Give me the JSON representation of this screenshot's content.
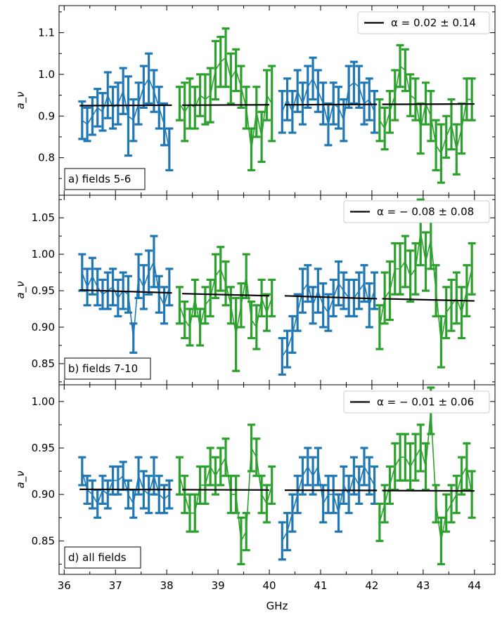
{
  "figure": {
    "xlabel": "GHz",
    "xticks": [
      36,
      37,
      38,
      39,
      40,
      41,
      42,
      43,
      44
    ]
  },
  "chart_data": [
    {
      "type": "line",
      "panel_label": "a) fields 5-6",
      "ylabel": "a_ν",
      "yticks": [
        0.8,
        0.9,
        1.0,
        1.1
      ],
      "xlim": [
        35.9,
        44.4
      ],
      "ylim": [
        0.71,
        1.165
      ],
      "legend": "α = 0.02 ± 0.14",
      "legend_position": "top-right",
      "series": [
        {
          "name": "blue",
          "color": "#1f77b4",
          "x": [
            36.35,
            36.45,
            36.55,
            36.65,
            36.75,
            36.85,
            36.95,
            37.05,
            37.15,
            37.25,
            37.35,
            37.45,
            37.55,
            37.65,
            37.75,
            37.85,
            37.95,
            38.05
          ],
          "y": [
            0.89,
            0.88,
            0.9,
            0.92,
            0.91,
            0.95,
            0.92,
            0.93,
            0.96,
            0.9,
            0.89,
            0.93,
            0.97,
            0.99,
            0.96,
            0.92,
            0.88,
            0.82
          ],
          "err": [
            0.045,
            0.04,
            0.045,
            0.045,
            0.045,
            0.055,
            0.05,
            0.05,
            0.055,
            0.095,
            0.05,
            0.05,
            0.05,
            0.06,
            0.05,
            0.05,
            0.05,
            0.05
          ]
        },
        {
          "name": "green",
          "color": "#2ca02c",
          "x": [
            38.25,
            38.35,
            38.45,
            38.55,
            38.65,
            38.75,
            38.85,
            38.95,
            39.05,
            39.15,
            39.25,
            39.35,
            39.45,
            39.55,
            39.65,
            39.75,
            39.85,
            39.95,
            40.05
          ],
          "y": [
            0.93,
            0.91,
            0.93,
            0.92,
            0.95,
            0.94,
            0.95,
            1.01,
            1.03,
            1.04,
            0.99,
            1.01,
            0.97,
            0.92,
            0.82,
            0.91,
            0.85,
            0.95,
            0.93
          ],
          "err": [
            0.04,
            0.07,
            0.06,
            0.05,
            0.05,
            0.06,
            0.065,
            0.07,
            0.06,
            0.07,
            0.06,
            0.05,
            0.05,
            0.05,
            0.05,
            0.06,
            0.06,
            0.06,
            0.09
          ]
        },
        {
          "name": "blue",
          "color": "#1f77b4",
          "x": [
            40.25,
            40.35,
            40.45,
            40.55,
            40.65,
            40.75,
            40.85,
            40.95,
            41.05,
            41.15,
            41.25,
            41.35,
            41.45,
            41.55,
            41.65,
            41.75,
            41.85,
            41.95,
            42.05
          ],
          "y": [
            0.91,
            0.94,
            0.91,
            0.96,
            0.93,
            0.97,
            0.99,
            0.96,
            0.93,
            0.88,
            0.93,
            0.92,
            0.89,
            0.97,
            0.98,
            0.97,
            0.93,
            0.94,
            0.91
          ],
          "err": [
            0.05,
            0.05,
            0.05,
            0.05,
            0.05,
            0.05,
            0.05,
            0.05,
            0.05,
            0.05,
            0.05,
            0.05,
            0.05,
            0.05,
            0.05,
            0.05,
            0.05,
            0.05,
            0.05
          ]
        },
        {
          "name": "green",
          "color": "#2ca02c",
          "x": [
            42.15,
            42.25,
            42.35,
            42.45,
            42.55,
            42.65,
            42.75,
            42.85,
            42.95,
            43.05,
            43.15,
            43.25,
            43.35,
            43.45,
            43.55,
            43.65,
            43.75,
            43.85,
            43.95
          ],
          "y": [
            0.89,
            0.87,
            0.91,
            0.95,
            1.02,
            1.01,
            0.95,
            0.94,
            0.87,
            0.93,
            0.9,
            0.83,
            0.81,
            0.85,
            0.88,
            0.82,
            0.87,
            0.94,
            0.94
          ],
          "err": [
            0.05,
            0.05,
            0.05,
            0.06,
            0.05,
            0.05,
            0.05,
            0.05,
            0.06,
            0.05,
            0.06,
            0.06,
            0.07,
            0.05,
            0.06,
            0.06,
            0.06,
            0.05,
            0.05
          ]
        }
      ],
      "fits": [
        {
          "x": [
            36.3,
            38.1
          ],
          "y": [
            0.925,
            0.926
          ]
        },
        {
          "x": [
            38.3,
            40.0
          ],
          "y": [
            0.926,
            0.927
          ]
        },
        {
          "x": [
            40.3,
            42.1
          ],
          "y": [
            0.927,
            0.928
          ]
        },
        {
          "x": [
            42.2,
            44.0
          ],
          "y": [
            0.928,
            0.929
          ]
        }
      ]
    },
    {
      "type": "line",
      "panel_label": "b) fields 7-10",
      "ylabel": "a_ν",
      "yticks": [
        0.85,
        0.9,
        0.95,
        1.0,
        1.05
      ],
      "xlim": [
        35.9,
        44.4
      ],
      "ylim": [
        0.821,
        1.081
      ],
      "legend": "α = − 0.08 ± 0.08",
      "legend_position": "top-right",
      "series": [
        {
          "name": "blue",
          "color": "#1f77b4",
          "x": [
            36.35,
            36.45,
            36.55,
            36.65,
            36.75,
            36.85,
            36.95,
            37.05,
            37.15,
            37.25,
            37.35,
            37.45,
            37.55,
            37.65,
            37.75,
            37.85,
            37.95,
            38.05
          ],
          "y": [
            0.975,
            0.955,
            0.97,
            0.955,
            0.945,
            0.95,
            0.955,
            0.94,
            0.95,
            0.945,
            0.885,
            0.97,
            0.955,
            0.975,
            0.99,
            0.945,
            0.93,
            0.955
          ],
          "err": [
            0.025,
            0.025,
            0.025,
            0.025,
            0.02,
            0.025,
            0.025,
            0.025,
            0.025,
            0.025,
            0.02,
            0.03,
            0.03,
            0.03,
            0.035,
            0.025,
            0.025,
            0.025
          ]
        },
        {
          "name": "green",
          "color": "#2ca02c",
          "x": [
            38.25,
            38.35,
            38.45,
            38.55,
            38.65,
            38.75,
            38.85,
            38.95,
            39.05,
            39.15,
            39.25,
            39.35,
            39.45,
            39.55,
            39.65,
            39.75,
            39.85,
            39.95,
            40.05
          ],
          "y": [
            0.93,
            0.91,
            0.9,
            0.94,
            0.9,
            0.93,
            0.94,
            0.97,
            0.98,
            0.96,
            0.93,
            0.89,
            0.93,
            0.97,
            0.91,
            0.9,
            0.94,
            0.92,
            0.94
          ],
          "err": [
            0.025,
            0.025,
            0.025,
            0.025,
            0.025,
            0.025,
            0.025,
            0.03,
            0.03,
            0.03,
            0.025,
            0.05,
            0.03,
            0.03,
            0.025,
            0.03,
            0.025,
            0.025,
            0.025
          ]
        },
        {
          "name": "blue",
          "color": "#1f77b4",
          "x": [
            40.25,
            40.35,
            40.45,
            40.55,
            40.65,
            40.75,
            40.85,
            40.95,
            41.05,
            41.15,
            41.25,
            41.35,
            41.45,
            41.55,
            41.65,
            41.75,
            41.85,
            41.95,
            42.05
          ],
          "y": [
            0.86,
            0.87,
            0.89,
            0.92,
            0.95,
            0.96,
            0.93,
            0.95,
            0.93,
            0.92,
            0.94,
            0.96,
            0.95,
            0.94,
            0.94,
            0.95,
            0.96,
            0.93,
            0.95
          ],
          "err": [
            0.025,
            0.025,
            0.025,
            0.025,
            0.03,
            0.025,
            0.025,
            0.03,
            0.03,
            0.025,
            0.025,
            0.03,
            0.025,
            0.025,
            0.025,
            0.025,
            0.025,
            0.03,
            0.025
          ]
        },
        {
          "name": "green",
          "color": "#2ca02c",
          "x": [
            42.15,
            42.25,
            42.35,
            42.45,
            42.55,
            42.65,
            42.75,
            42.85,
            42.95,
            43.05,
            43.15,
            43.25,
            43.35,
            43.45,
            43.55,
            43.65,
            43.75,
            43.85,
            43.95
          ],
          "y": [
            0.9,
            0.94,
            0.95,
            0.98,
            0.98,
            0.99,
            0.97,
            0.98,
            1.03,
            0.99,
            1.02,
            0.95,
            0.88,
            0.92,
            0.93,
            0.94,
            0.92,
            0.95,
            0.98
          ],
          "err": [
            0.03,
            0.035,
            0.04,
            0.035,
            0.035,
            0.035,
            0.035,
            0.035,
            0.045,
            0.04,
            0.04,
            0.035,
            0.035,
            0.035,
            0.035,
            0.035,
            0.035,
            0.035,
            0.035
          ]
        }
      ],
      "fits": [
        {
          "x": [
            36.3,
            38.1
          ],
          "y": [
            0.951,
            0.947
          ]
        },
        {
          "x": [
            38.3,
            40.0
          ],
          "y": [
            0.946,
            0.943
          ]
        },
        {
          "x": [
            40.3,
            42.1
          ],
          "y": [
            0.943,
            0.939
          ]
        },
        {
          "x": [
            42.2,
            44.0
          ],
          "y": [
            0.939,
            0.936
          ]
        }
      ]
    },
    {
      "type": "line",
      "panel_label": "d) all fields",
      "ylabel": "a_ν",
      "yticks": [
        0.85,
        0.9,
        0.95,
        1.0
      ],
      "xlim": [
        35.9,
        44.4
      ],
      "ylim": [
        0.814,
        1.018
      ],
      "legend": "α = − 0.01 ± 0.06",
      "legend_position": "top-right",
      "series": [
        {
          "name": "blue",
          "color": "#1f77b4",
          "x": [
            36.35,
            36.45,
            36.55,
            36.65,
            36.75,
            36.85,
            36.95,
            37.05,
            37.15,
            37.25,
            37.35,
            37.45,
            37.55,
            37.65,
            37.75,
            37.85,
            37.95,
            38.05
          ],
          "y": [
            0.925,
            0.905,
            0.9,
            0.89,
            0.905,
            0.9,
            0.915,
            0.915,
            0.92,
            0.9,
            0.89,
            0.92,
            0.905,
            0.9,
            0.92,
            0.9,
            0.895,
            0.9
          ],
          "err": [
            0.015,
            0.015,
            0.015,
            0.015,
            0.015,
            0.015,
            0.015,
            0.015,
            0.015,
            0.015,
            0.015,
            0.02,
            0.02,
            0.02,
            0.02,
            0.02,
            0.015,
            0.015
          ]
        },
        {
          "name": "green",
          "color": "#2ca02c",
          "x": [
            38.25,
            38.35,
            38.45,
            38.55,
            38.65,
            38.75,
            38.85,
            38.95,
            39.05,
            39.15,
            39.25,
            39.35,
            39.45,
            39.55,
            39.65,
            39.75,
            39.85,
            39.95,
            40.05
          ],
          "y": [
            0.92,
            0.9,
            0.88,
            0.88,
            0.91,
            0.91,
            0.93,
            0.92,
            0.93,
            0.94,
            0.9,
            0.9,
            0.85,
            0.86,
            0.95,
            0.94,
            0.9,
            0.89,
            0.91
          ],
          "err": [
            0.02,
            0.02,
            0.02,
            0.02,
            0.02,
            0.02,
            0.02,
            0.02,
            0.02,
            0.02,
            0.02,
            0.02,
            0.025,
            0.02,
            0.025,
            0.02,
            0.02,
            0.02,
            0.02
          ]
        },
        {
          "name": "blue",
          "color": "#1f77b4",
          "x": [
            40.25,
            40.35,
            40.45,
            40.55,
            40.65,
            40.75,
            40.85,
            40.95,
            41.05,
            41.15,
            41.25,
            41.35,
            41.45,
            41.55,
            41.65,
            41.75,
            41.85,
            41.95,
            42.05
          ],
          "y": [
            0.85,
            0.86,
            0.88,
            0.9,
            0.92,
            0.93,
            0.92,
            0.93,
            0.89,
            0.9,
            0.9,
            0.88,
            0.91,
            0.9,
            0.92,
            0.91,
            0.93,
            0.92,
            0.91
          ],
          "err": [
            0.02,
            0.02,
            0.02,
            0.02,
            0.02,
            0.02,
            0.02,
            0.02,
            0.02,
            0.02,
            0.02,
            0.02,
            0.02,
            0.02,
            0.02,
            0.02,
            0.02,
            0.02,
            0.02
          ]
        },
        {
          "name": "green",
          "color": "#2ca02c",
          "x": [
            42.15,
            42.25,
            42.35,
            42.45,
            42.55,
            42.65,
            42.75,
            42.85,
            42.95,
            43.05,
            43.15,
            43.25,
            43.35,
            43.45,
            43.55,
            43.65,
            43.75,
            43.85,
            43.95
          ],
          "y": [
            0.87,
            0.89,
            0.91,
            0.93,
            0.94,
            0.94,
            0.93,
            0.94,
            0.95,
            0.93,
            0.99,
            0.89,
            0.85,
            0.88,
            0.89,
            0.9,
            0.92,
            0.93,
            0.9
          ],
          "err": [
            0.02,
            0.02,
            0.02,
            0.025,
            0.025,
            0.025,
            0.025,
            0.025,
            0.025,
            0.025,
            0.025,
            0.02,
            0.025,
            0.02,
            0.02,
            0.02,
            0.02,
            0.025,
            0.025
          ]
        }
      ],
      "fits": [
        {
          "x": [
            36.3,
            38.1
          ],
          "y": [
            0.9055,
            0.9052
          ]
        },
        {
          "x": [
            38.3,
            40.0
          ],
          "y": [
            0.9051,
            0.9048
          ]
        },
        {
          "x": [
            40.3,
            42.1
          ],
          "y": [
            0.9046,
            0.9043
          ]
        },
        {
          "x": [
            42.2,
            44.0
          ],
          "y": [
            0.9042,
            0.9038
          ]
        }
      ]
    }
  ]
}
